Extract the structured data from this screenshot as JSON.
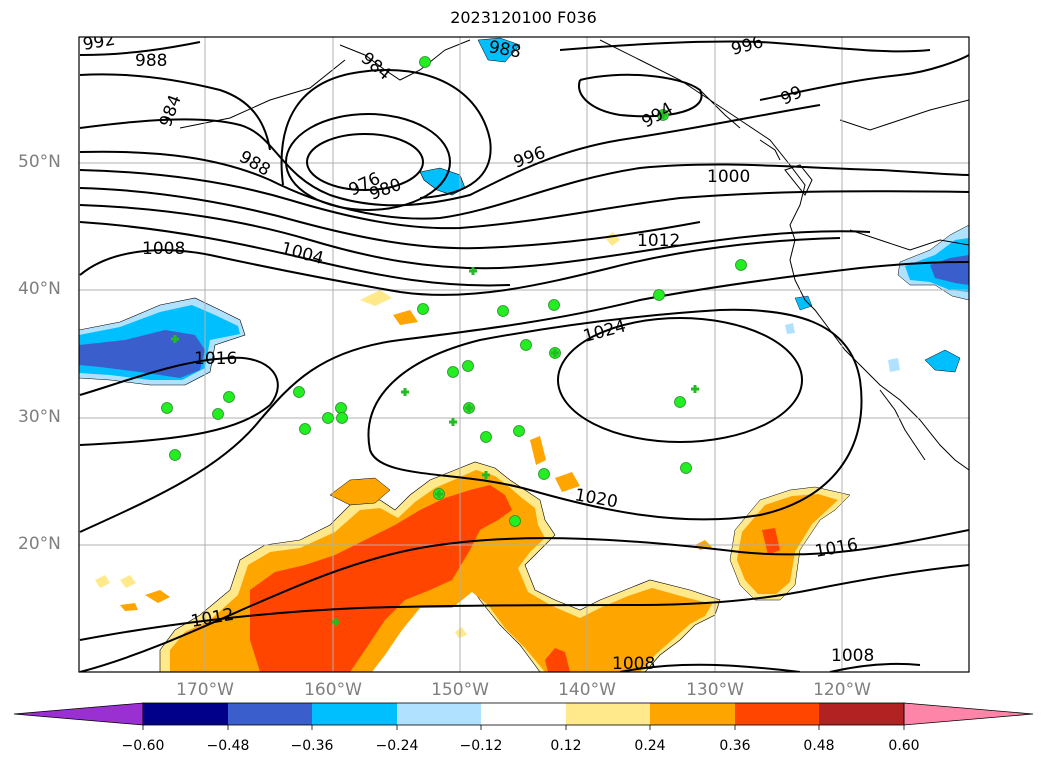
{
  "title": "2023120100 F036",
  "lat_labels": [
    "50°N",
    "40°N",
    "30°N",
    "20°N"
  ],
  "lon_labels": [
    "170°W",
    "160°W",
    "150°W",
    "140°W",
    "130°W",
    "120°W"
  ],
  "isobar_labels": [
    "992",
    "988",
    "988",
    "996",
    "99",
    "984",
    "984",
    "988",
    "976",
    "980",
    "996",
    "994",
    "1000",
    "1008",
    "1004",
    "1012",
    "1024",
    "1016",
    "1020",
    "1016",
    "1012",
    "1008",
    "1008"
  ],
  "colorbar": {
    "ticks": [
      "−0.60",
      "−0.48",
      "−0.36",
      "−0.24",
      "−0.12",
      "0.12",
      "0.24",
      "0.36",
      "0.48",
      "0.60"
    ],
    "colors": [
      "#9b30d2",
      "#00008b",
      "#3a5fcd",
      "#00bfff",
      "#b0e2ff",
      "#ffffff",
      "#ffe98a",
      "#ffa500",
      "#ff4500",
      "#b22222",
      "#ff85a8"
    ]
  },
  "colors": {
    "negative_strong": "#3a5fcd",
    "negative_mid": "#00bfff",
    "negative_weak": "#b0e2ff",
    "positive_weak": "#ffe98a",
    "positive_mid": "#ffa500",
    "positive_strong": "#ff4500",
    "station_marker": "#22ee22"
  },
  "station_markers": {
    "circle_count": 33,
    "plus_count": 14
  }
}
